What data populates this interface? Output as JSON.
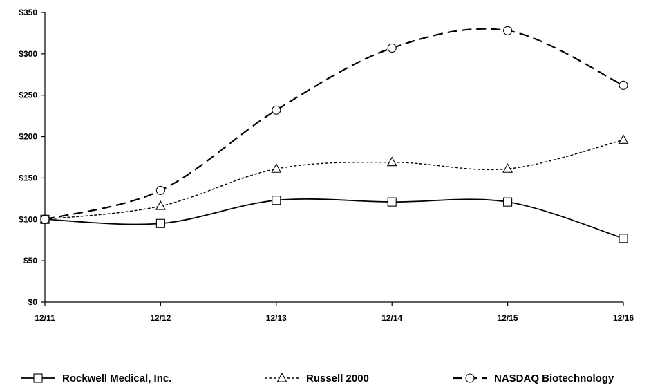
{
  "chart_data": {
    "type": "line",
    "title": "",
    "xlabel": "",
    "ylabel": "",
    "categories": [
      "12/11",
      "12/12",
      "12/13",
      "12/14",
      "12/15",
      "12/16"
    ],
    "ylim": [
      0,
      350
    ],
    "y_ticks": [
      0,
      50,
      100,
      150,
      200,
      250,
      300,
      350
    ],
    "y_tick_labels": [
      "$0",
      "$50",
      "$100",
      "$150",
      "$200",
      "$250",
      "$300",
      "$350"
    ],
    "grid": false,
    "legend_position": "bottom",
    "series": [
      {
        "name": "Rockwell Medical, Inc.",
        "values": [
          100,
          95,
          123,
          121,
          121,
          77
        ],
        "line_style": "solid",
        "marker": "square",
        "color": "#000000"
      },
      {
        "name": "Russell 2000",
        "values": [
          100,
          116,
          161,
          169,
          161,
          196
        ],
        "line_style": "dotted",
        "marker": "triangle",
        "color": "#000000"
      },
      {
        "name": "NASDAQ Biotechnology",
        "values": [
          100,
          135,
          232,
          307,
          328,
          262
        ],
        "line_style": "dashed",
        "marker": "circle",
        "color": "#000000"
      }
    ]
  }
}
